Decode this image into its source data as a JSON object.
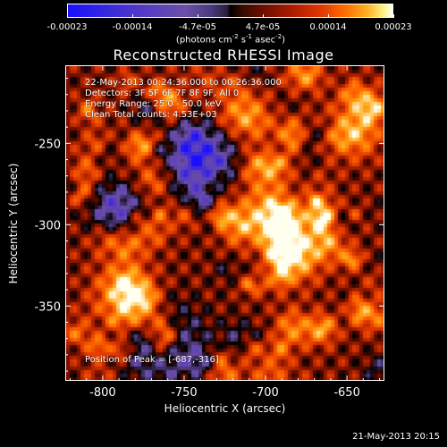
{
  "colorbar": {
    "tick_labels": [
      "-0.00023",
      "-0.00014",
      "-4.7e-05",
      "4.7e-05",
      "0.00014",
      "0.00023"
    ],
    "units_text": "(photons cm",
    "units_sup1": "-2",
    "units_mid": " s",
    "units_sup2": "-1",
    "units_mid2": " asec",
    "units_sup3": "-2",
    "units_end": ")"
  },
  "title": "Reconstructed RHESSI Image",
  "annotations": {
    "line1": "22-May-2013 00:24:36.000 to 00:26:36.000",
    "line2": "Detectors: 3F 5F 6F 7F 8F 9F, All 0",
    "line3": "Energy Range: 25.0 - 50.0 keV",
    "line4": "Clean    Total counts: 4.53E+03",
    "peak": "Position of Peak = [-687,-316]"
  },
  "footer": "21-May-2013 20:15",
  "chart_data": {
    "type": "heatmap",
    "title": "Reconstructed RHESSI Image",
    "xlabel": "Heliocentric X (arcsec)",
    "ylabel": "Heliocentric Y (arcsec)",
    "xlim": [
      -823,
      -627
    ],
    "ylim": [
      -396,
      -202
    ],
    "xticks": [
      -800,
      -750,
      -700,
      -650
    ],
    "xtick_labels": [
      "-800",
      "-750",
      "-700",
      "-650"
    ],
    "yticks": [
      -250,
      -300,
      -350
    ],
    "ytick_labels": [
      "-250",
      "-300",
      "-350"
    ],
    "zlim": [
      -0.00023,
      0.00023
    ],
    "peak_position": [
      -687,
      -316
    ],
    "colormap": [
      "#1a10ff",
      "#5a3fbf",
      "#6b4fa8",
      "#000000",
      "#7a1000",
      "#e03800",
      "#ff6a00",
      "#ffae20",
      "#fffff0"
    ]
  }
}
